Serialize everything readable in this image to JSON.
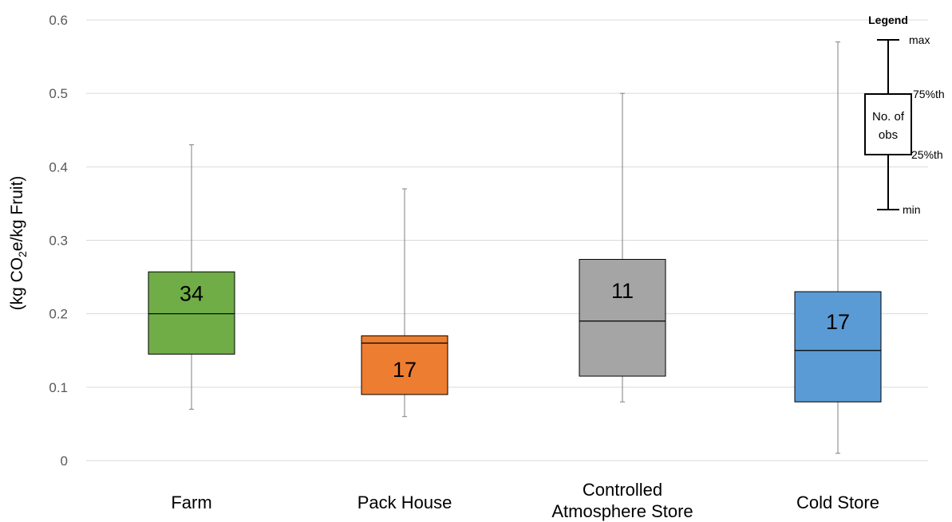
{
  "chart_data": {
    "type": "box",
    "ylabel_parts": [
      "(kg CO",
      "2",
      "e/kg Fruit)"
    ],
    "ylim": [
      0,
      0.6
    ],
    "yticks": [
      0,
      0.1,
      0.2,
      0.3,
      0.4,
      0.5,
      0.6
    ],
    "ytick_labels": [
      "0",
      "0.1",
      "0.2",
      "0.3",
      "0.4",
      "0.5",
      "0.6"
    ],
    "grid": true,
    "categories": [
      {
        "label_lines": [
          "Farm"
        ],
        "min": 0.07,
        "q1": 0.145,
        "median": 0.2,
        "q3": 0.257,
        "max": 0.43,
        "n": "34",
        "color": "#70AD47"
      },
      {
        "label_lines": [
          "Pack House"
        ],
        "min": 0.06,
        "q1": 0.09,
        "median": 0.16,
        "q3": 0.17,
        "max": 0.37,
        "n": "17",
        "color": "#ED7D31"
      },
      {
        "label_lines": [
          "Controlled",
          "Atmosphere Store"
        ],
        "min": 0.08,
        "q1": 0.115,
        "median": 0.19,
        "q3": 0.274,
        "max": 0.5,
        "n": "11",
        "color": "#A5A5A5"
      },
      {
        "label_lines": [
          "Cold Store"
        ],
        "min": 0.01,
        "q1": 0.08,
        "median": 0.15,
        "q3": 0.23,
        "max": 0.57,
        "n": "17",
        "color": "#5B9BD5"
      }
    ],
    "legend": {
      "title": "Legend",
      "max_label": "max",
      "q3_label": "75%th",
      "q1_label": "25%th",
      "min_label": "min",
      "box_lines": [
        "No. of",
        "obs"
      ],
      "position": "top-right"
    }
  }
}
